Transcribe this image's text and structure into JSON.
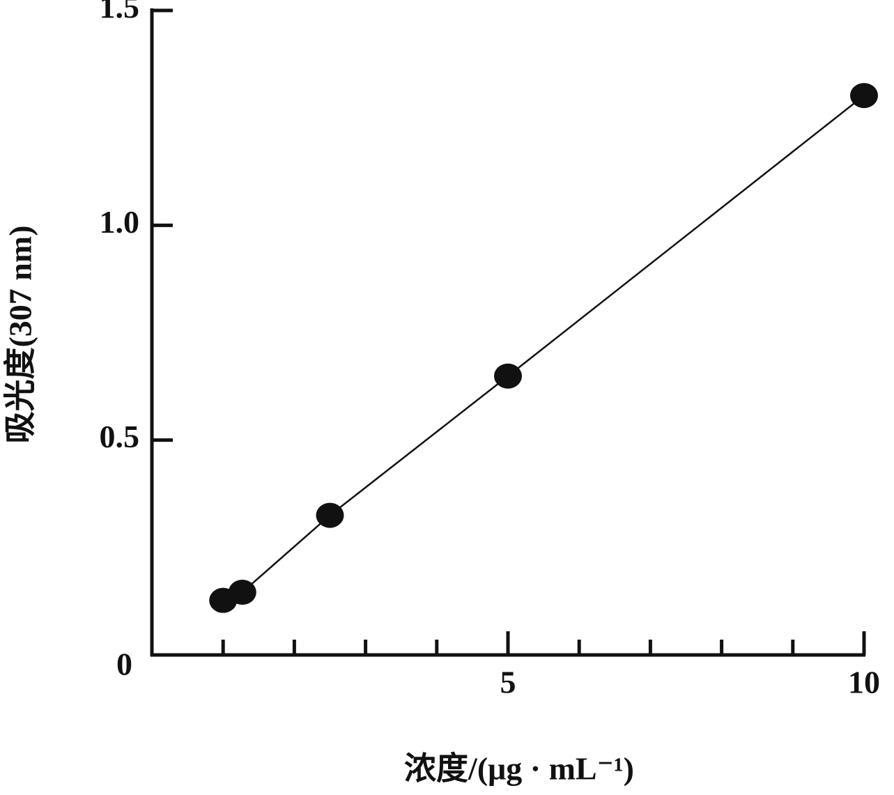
{
  "chart_data": {
    "type": "line",
    "x_label": "浓度/(μg · mL⁻¹)",
    "y_label": "吸光度(307 nm)",
    "x": [
      1,
      1.27,
      2.5,
      5,
      10
    ],
    "series": [
      {
        "color": "#111111",
        "values": [
          0.127,
          0.146,
          0.325,
          0.649,
          1.302
        ]
      }
    ],
    "xlim": [
      0,
      10
    ],
    "xticks": [
      5,
      10
    ],
    "x_minor_ticks": [
      1,
      2,
      3,
      4,
      6,
      7,
      8,
      9
    ],
    "ylim": [
      0,
      1.5
    ],
    "yticks": [
      0,
      0.5,
      {
        "value": 1,
        "label": "1.0"
      },
      1.5
    ],
    "grid": false
  }
}
